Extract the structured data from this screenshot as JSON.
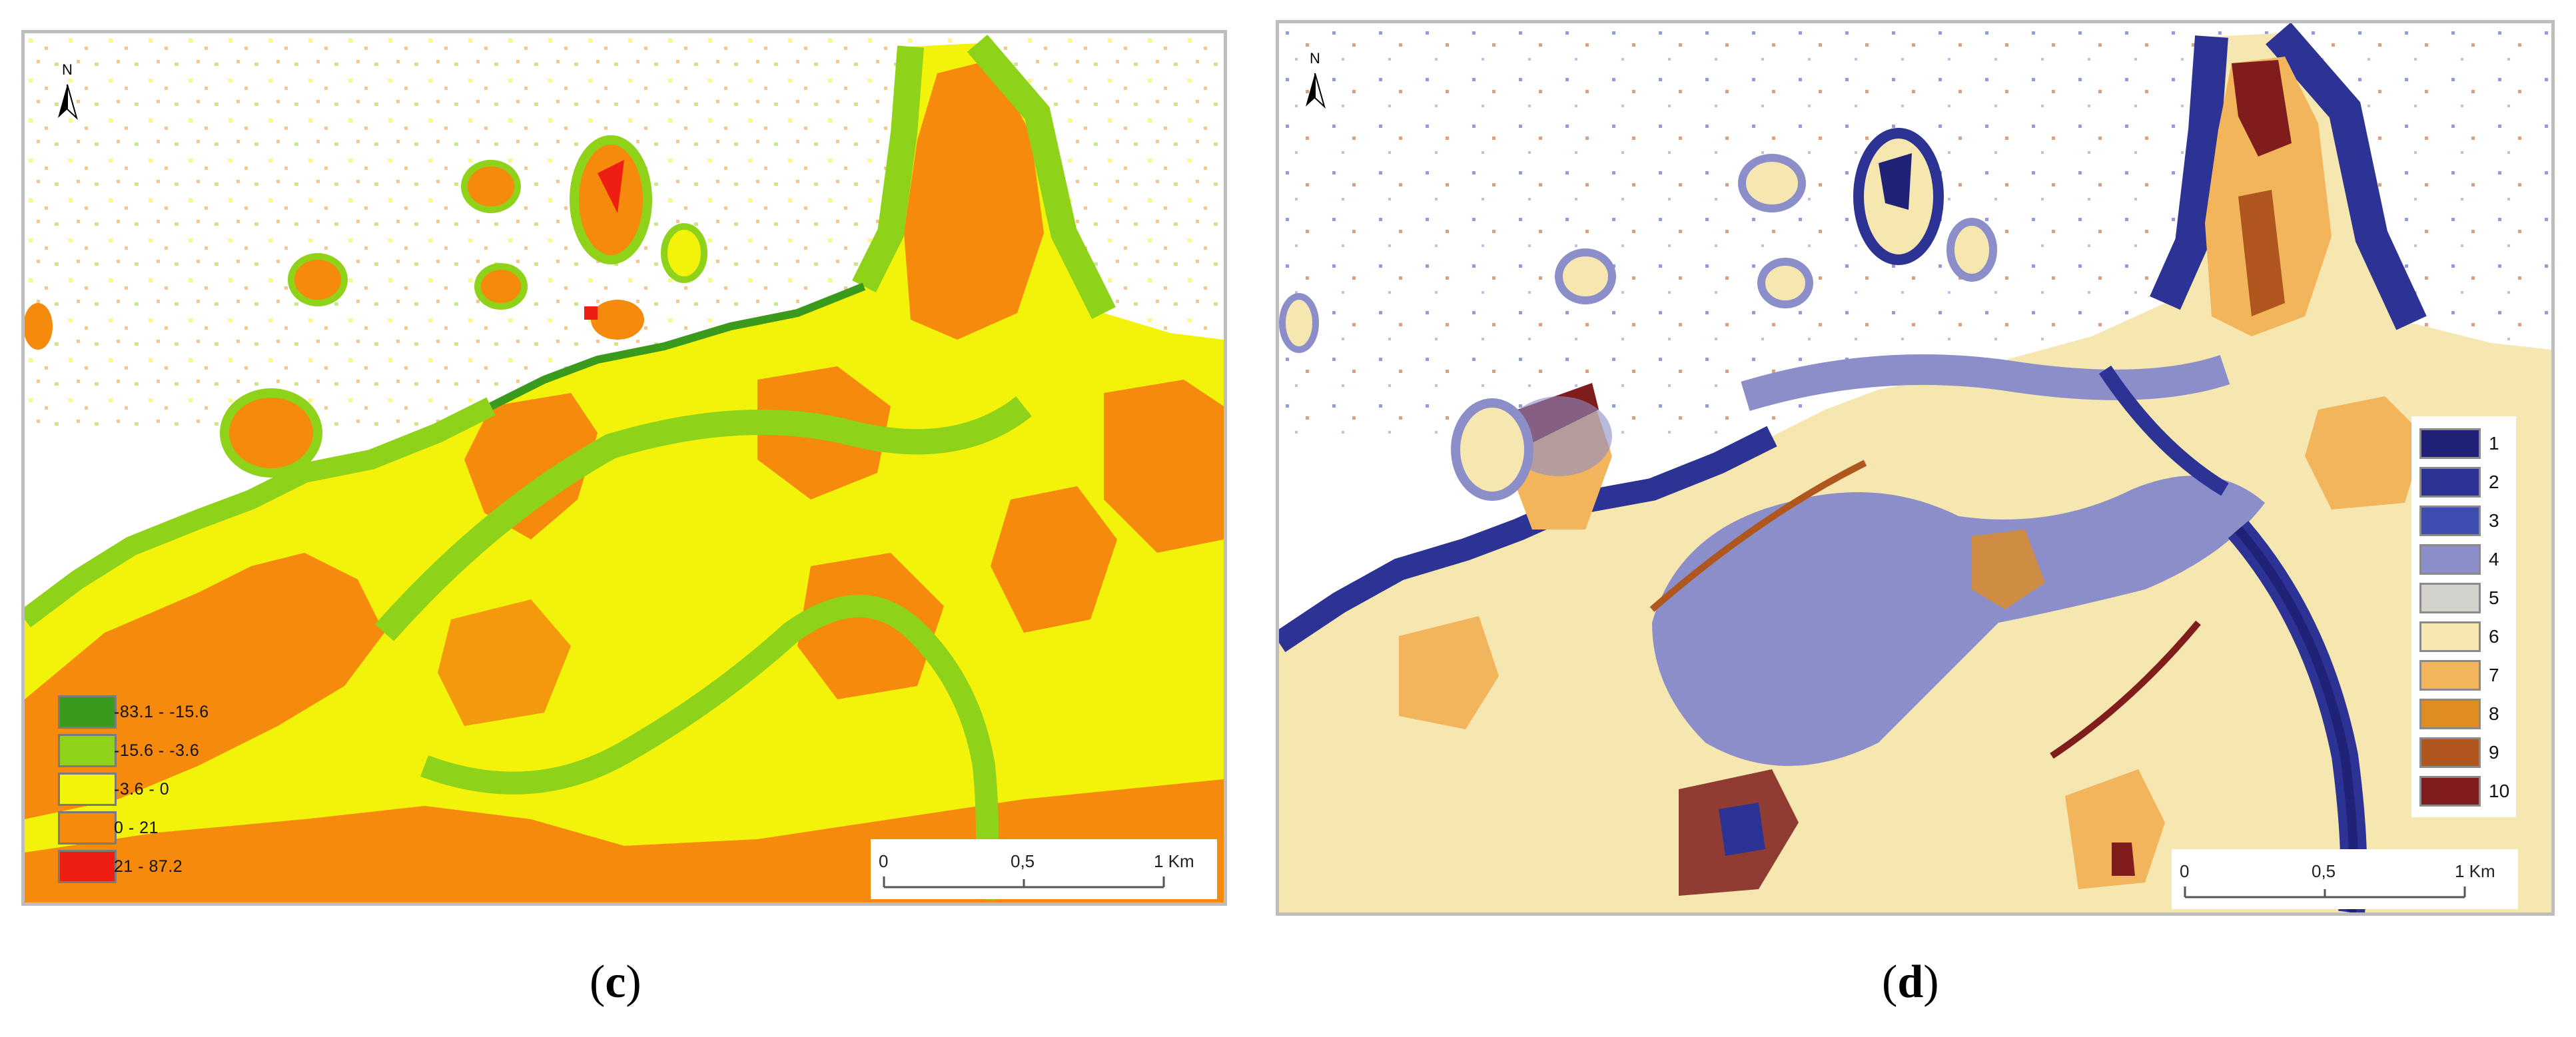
{
  "panels": [
    {
      "id": "c",
      "caption_open": "(",
      "caption_letter": "c",
      "caption_close": ")",
      "north_label": "N",
      "legend": [
        {
          "label": "-83.1 - -15.6",
          "color": "#3a9a1c"
        },
        {
          "label": "-15.6 - -3.6",
          "color": "#8fd21a"
        },
        {
          "label": "-3.6 - 0",
          "color": "#f2f20a"
        },
        {
          "label": "0 - 21",
          "color": "#f58a0c"
        },
        {
          "label": "21 - 87.2",
          "color": "#ee1e12"
        }
      ],
      "scale": {
        "ticks": [
          "0",
          "0,5",
          "1 Km"
        ]
      }
    },
    {
      "id": "d",
      "caption_open": "(",
      "caption_letter": "d",
      "caption_close": ")",
      "north_label": "N",
      "legend": [
        {
          "label": "1",
          "color": "#1f2276"
        },
        {
          "label": "2",
          "color": "#2c3394"
        },
        {
          "label": "3",
          "color": "#3f4cb2"
        },
        {
          "label": "4",
          "color": "#8b8ec8"
        },
        {
          "label": "5",
          "color": "#d4d2cc"
        },
        {
          "label": "6",
          "color": "#f6e6b0"
        },
        {
          "label": "7",
          "color": "#f2b55b"
        },
        {
          "label": "8",
          "color": "#df8c21"
        },
        {
          "label": "9",
          "color": "#b0571f"
        },
        {
          "label": "10",
          "color": "#7f1d1d"
        }
      ],
      "scale": {
        "ticks": [
          "0",
          "0,5",
          "1 Km"
        ]
      }
    }
  ]
}
